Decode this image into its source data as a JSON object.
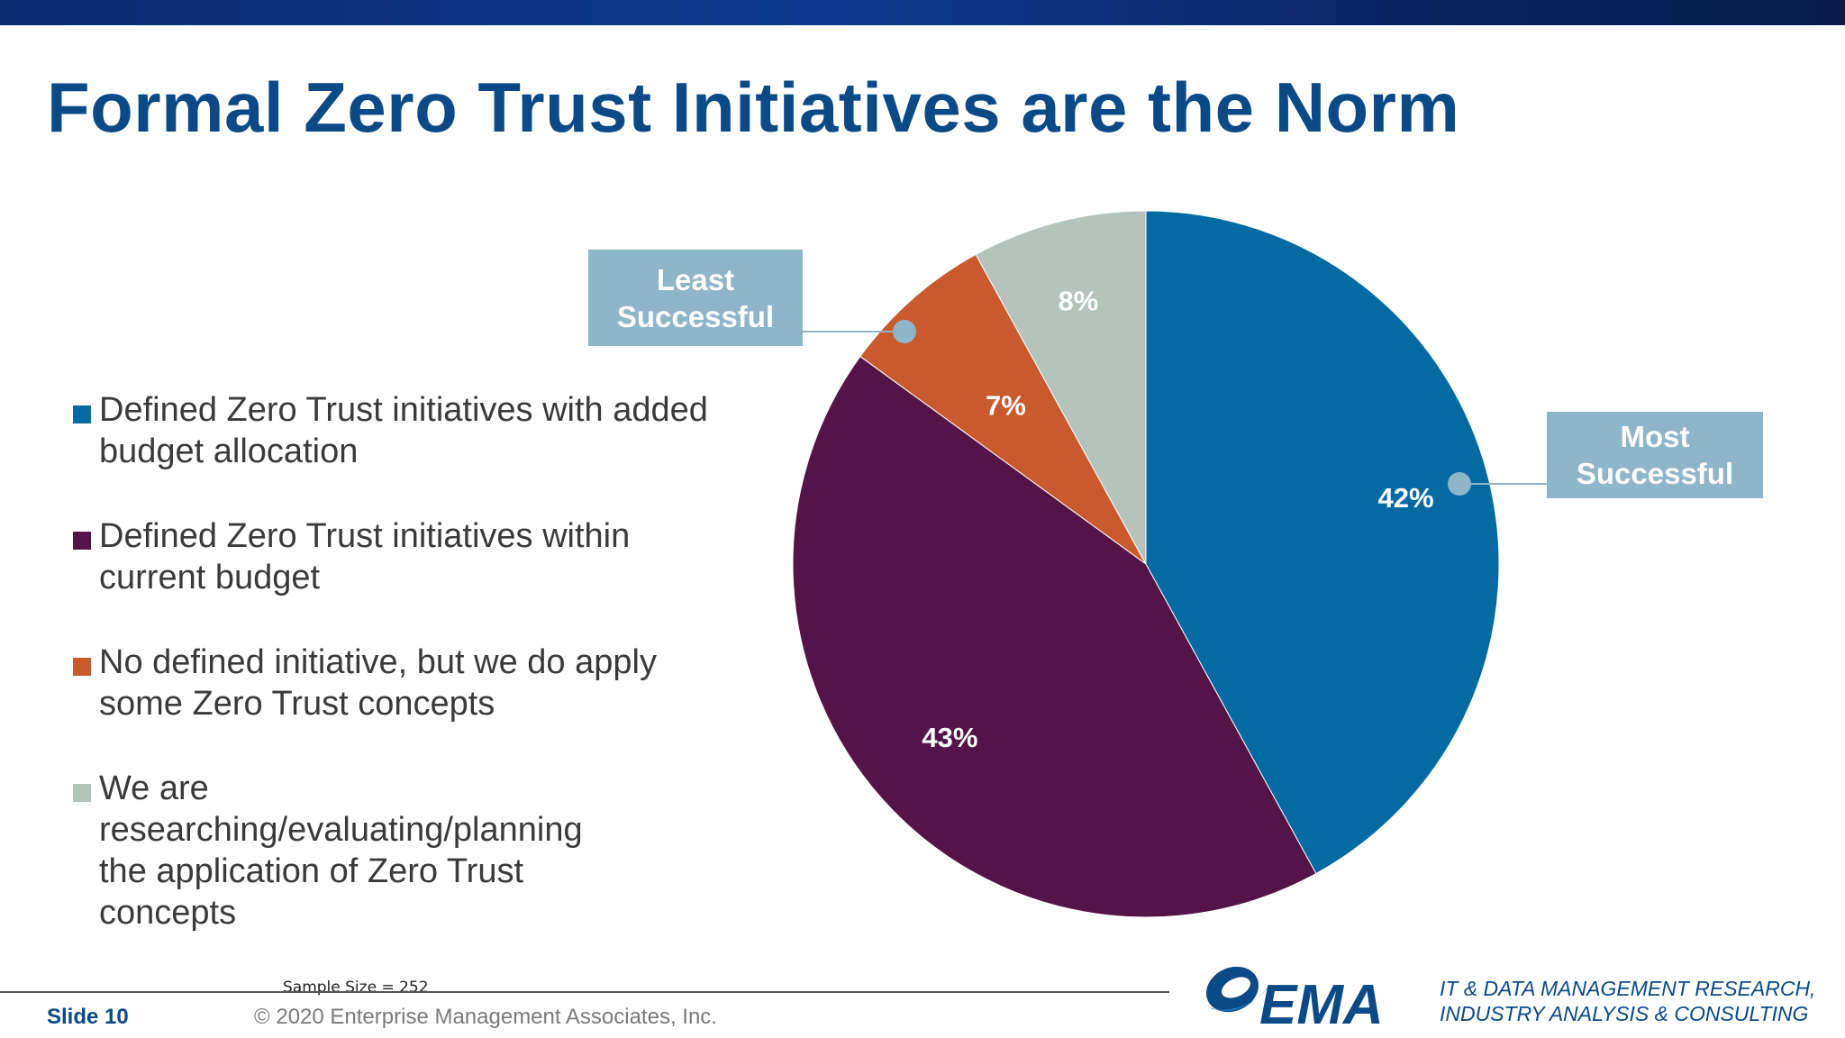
{
  "slide": {
    "title": "Formal Zero Trust Initiatives are the Norm",
    "slide_number": "Slide 10",
    "copyright": "© 2020 Enterprise Management Associates, Inc.",
    "sample_size": "Sample Size = 252",
    "logo_text": "EMA",
    "tagline_line1": "IT & DATA MANAGEMENT RESEARCH,",
    "tagline_line2": "INDUSTRY ANALYSIS & CONSULTING"
  },
  "callouts": {
    "least_successful": "Least\nSuccessful",
    "most_successful": "Most\nSuccessful"
  },
  "legend": [
    {
      "label": "Defined Zero Trust initiatives with added budget allocation",
      "color": "#036ba1"
    },
    {
      "label": "Defined Zero Trust initiatives within current budget",
      "color": "#551447"
    },
    {
      "label": "No defined initiative, but we do apply some Zero Trust concepts",
      "color": "#c95a2e"
    },
    {
      "label": "We are researching/evaluating/planning the application of Zero Trust concepts",
      "color": "#b4c3bc"
    }
  ],
  "chart_data": {
    "type": "pie",
    "title": "Formal Zero Trust Initiatives are the Norm",
    "slices": [
      {
        "label": "Defined Zero Trust initiatives with added budget allocation",
        "value": 42,
        "display": "42%",
        "color": "#036ba1"
      },
      {
        "label": "Defined Zero Trust initiatives within current budget",
        "value": 43,
        "display": "43%",
        "color": "#551447"
      },
      {
        "label": "No defined initiative, but we do apply some Zero Trust concepts",
        "value": 7,
        "display": "7%",
        "color": "#c95a2e"
      },
      {
        "label": "We are researching/evaluating/planning the application of Zero Trust concepts",
        "value": 8,
        "display": "8%",
        "color": "#b4c3bc"
      }
    ],
    "legend_position": "left",
    "start_angle": "12 o'clock",
    "direction": "clockwise"
  }
}
